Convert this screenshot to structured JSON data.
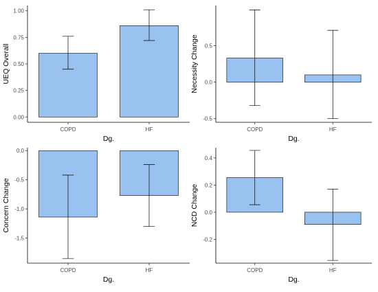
{
  "colors": {
    "bar_fill": "#99c2f0",
    "bar_stroke": "#000000"
  },
  "chart_data": [
    {
      "type": "bar",
      "categories": [
        "COPD",
        "HF"
      ],
      "values": [
        0.6,
        0.86
      ],
      "error_low": [
        0.45,
        0.72
      ],
      "error_high": [
        0.76,
        1.01
      ],
      "xlabel": "Dg.",
      "ylabel": "UEQ Overall",
      "ylim": [
        -0.05,
        1.05
      ],
      "yticks": [
        0.0,
        0.25,
        0.5,
        0.75,
        1.0
      ],
      "ytick_labels": [
        "0.00",
        "0.25",
        "0.50",
        "0.75",
        "1.00"
      ],
      "grid": false
    },
    {
      "type": "bar",
      "categories": [
        "COPD",
        "HF"
      ],
      "values": [
        0.33,
        0.1
      ],
      "error_low": [
        -0.32,
        -0.5
      ],
      "error_high": [
        0.99,
        0.71
      ],
      "xlabel": "Dg.",
      "ylabel": "Necessity Change",
      "ylim": [
        -0.55,
        1.05
      ],
      "yticks": [
        -0.5,
        0.0,
        0.5
      ],
      "ytick_labels": [
        "-0.5",
        "0.0",
        "0.5"
      ],
      "grid": false
    },
    {
      "type": "bar",
      "categories": [
        "COPD",
        "HF"
      ],
      "values": [
        -1.14,
        -0.77
      ],
      "error_low": [
        -1.85,
        -1.3
      ],
      "error_high": [
        -0.42,
        -0.24
      ],
      "xlabel": "Dg.",
      "ylabel": "Concern Change",
      "ylim": [
        -1.93,
        0.05
      ],
      "yticks": [
        0.0,
        -0.5,
        -1.0,
        -1.5
      ],
      "ytick_labels": [
        "0.0",
        "-0.5",
        "-1.0",
        "-1.5"
      ],
      "grid": false
    },
    {
      "type": "bar",
      "categories": [
        "COPD",
        "HF"
      ],
      "values": [
        0.255,
        -0.09
      ],
      "error_low": [
        0.055,
        -0.355
      ],
      "error_high": [
        0.455,
        0.17
      ],
      "xlabel": "Dg.",
      "ylabel": "NCD Change",
      "ylim": [
        -0.375,
        0.475
      ],
      "yticks": [
        0.4,
        0.2,
        0.0,
        -0.2
      ],
      "ytick_labels": [
        "0.4",
        "0.2",
        "0.0",
        "-0.2"
      ],
      "grid": false
    }
  ]
}
